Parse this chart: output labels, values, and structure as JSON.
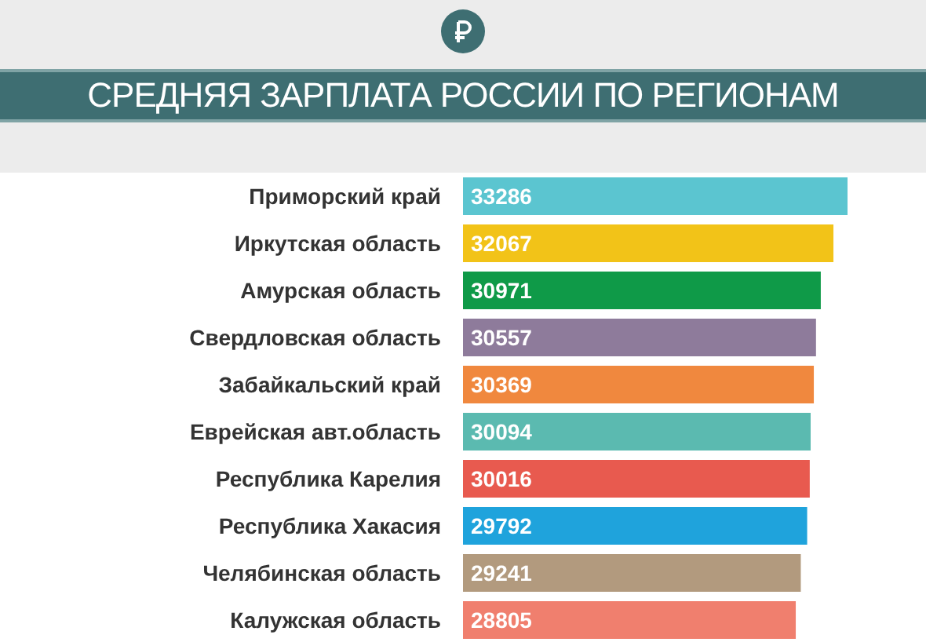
{
  "chart_data": {
    "type": "bar",
    "orientation": "horizontal",
    "title": "СРЕДНЯЯ ЗАРПЛАТА РОССИИ ПО РЕГИОНАМ",
    "categories": [
      "Приморский край",
      "Иркутская область",
      "Амурская область",
      "Свердловская область",
      "Забайкальский край",
      "Еврейская авт.область",
      "Республика Карелия",
      "Республика Хакасия",
      "Челябинская область",
      "Калужская область"
    ],
    "values": [
      33286,
      32067,
      30971,
      30557,
      30369,
      30094,
      30016,
      29792,
      29241,
      28805
    ],
    "colors": [
      "#5bc5d0",
      "#f2c318",
      "#0f9a48",
      "#8e7b9b",
      "#f0883e",
      "#5bbab0",
      "#e85a4f",
      "#1fa3dc",
      "#b29a7e",
      "#f07f6e"
    ],
    "data_labels": true
  }
}
